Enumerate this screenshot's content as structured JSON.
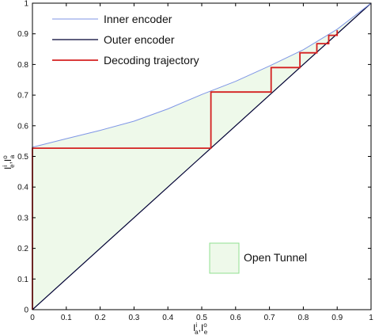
{
  "chart_data": {
    "type": "line",
    "xlim": [
      0,
      1
    ],
    "ylim": [
      0,
      1
    ],
    "x_ticks": [
      "0",
      "0.1",
      "0.2",
      "0.3",
      "0.4",
      "0.5",
      "0.6",
      "0.7",
      "0.8",
      "0.9",
      "1"
    ],
    "y_ticks": [
      "0",
      "0.1",
      "0.2",
      "0.3",
      "0.4",
      "0.5",
      "0.6",
      "0.7",
      "0.8",
      "0.9",
      "1"
    ],
    "xlabel": {
      "base": "I",
      "sup": "i",
      "sub": "a",
      "sep": ",",
      "base2": "I",
      "sup2": "o",
      "sub2": "e"
    },
    "ylabel": {
      "base": "I",
      "sup": "i",
      "sub": "e",
      "sep": ",",
      "base2": "I",
      "sup2": "o",
      "sub2": "a"
    },
    "grid": false,
    "legend": {
      "placement": "top-left",
      "entries": [
        {
          "label": "Inner encoder",
          "color": "#7f96e6"
        },
        {
          "label": "Outer encoder",
          "color": "#000033"
        },
        {
          "label": "Decoding trajectory",
          "color": "#d42020"
        }
      ]
    },
    "tunnel_label": "Open Tunnel",
    "tunnel_fill": "#eef9ea",
    "tunnel_border": "#90e090",
    "series": [
      {
        "name": "Inner encoder",
        "color": "#7f96e6",
        "x": [
          0,
          0.1,
          0.2,
          0.3,
          0.4,
          0.5,
          0.6,
          0.7,
          0.8,
          0.9,
          1.0
        ],
        "y": [
          0.53,
          0.558,
          0.585,
          0.615,
          0.655,
          0.702,
          0.745,
          0.795,
          0.848,
          0.915,
          1.0
        ]
      },
      {
        "name": "Outer encoder",
        "color": "#000033",
        "x": [
          0,
          1
        ],
        "y": [
          0,
          1
        ]
      },
      {
        "name": "Decoding trajectory",
        "color": "#d42020",
        "x": [
          0,
          0,
          0.527,
          0.527,
          0.705,
          0.705,
          0.79,
          0.79,
          0.84,
          0.84,
          0.875,
          0.875,
          0.9,
          0.9
        ],
        "y": [
          0,
          0.527,
          0.527,
          0.71,
          0.71,
          0.79,
          0.79,
          0.838,
          0.838,
          0.868,
          0.868,
          0.895,
          0.895,
          0.912
        ]
      }
    ]
  }
}
